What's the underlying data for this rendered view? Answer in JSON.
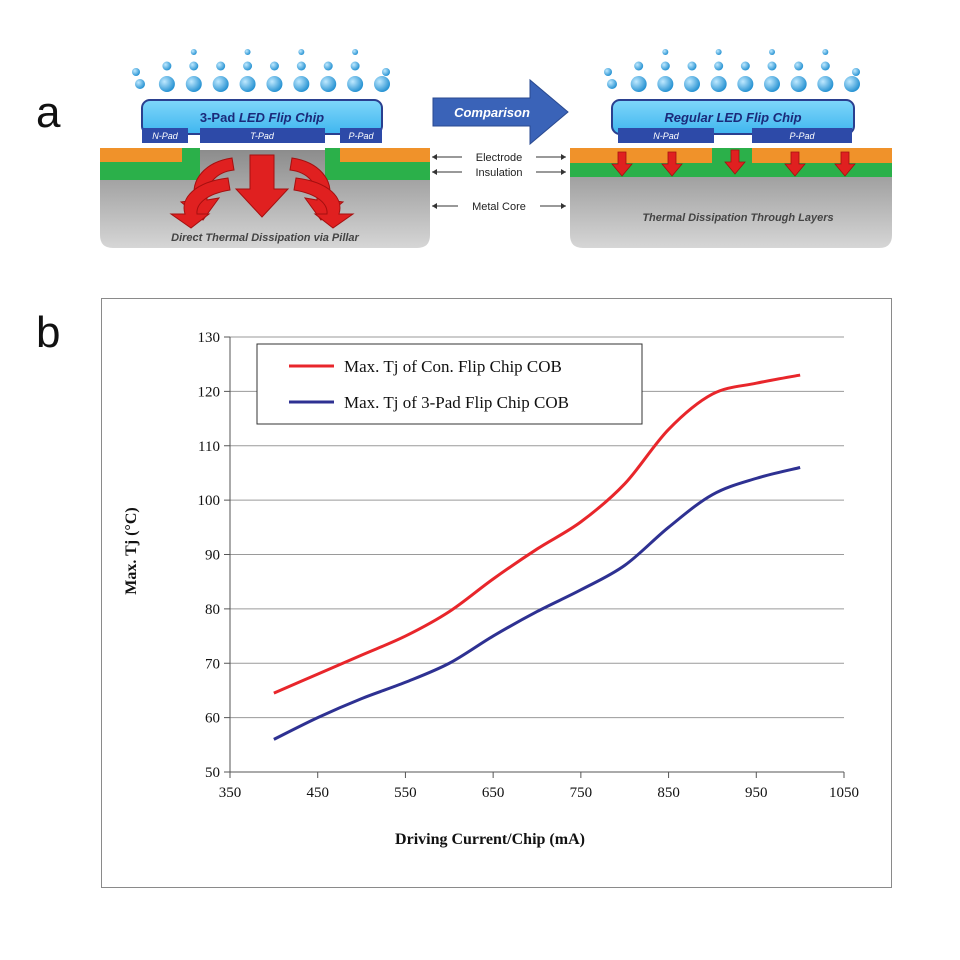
{
  "panels": {
    "a": "a",
    "b": "b"
  },
  "diagram": {
    "left_chip": {
      "title_bold": "3-Pad",
      "title_italic": "LED Flip Chip",
      "pads": [
        "N-Pad",
        "T-Pad",
        "P-Pad"
      ],
      "caption": "Direct Thermal Dissipation via Pillar"
    },
    "arrow_label": "Comparison",
    "right_chip": {
      "title": "Regular LED Flip Chip",
      "pads": [
        "N-Pad",
        "P-Pad"
      ],
      "caption": "Thermal Dissipation Through Layers"
    },
    "layer_labels": [
      "Electrode",
      "Insulation",
      "Metal Core"
    ],
    "colors": {
      "chip": "#5bc8f5",
      "chip_border": "#2a3f8f",
      "pad": "#2d4aa8",
      "electrode": "#f0922a",
      "insulation": "#2bb04a",
      "core": "#b7b7b7",
      "arrow": "#e02020",
      "droplet": "#2f9fd8",
      "comparison_arrow": "#3a63b8"
    }
  },
  "chart_data": {
    "type": "line",
    "title": "",
    "xlabel": "Driving Current/Chip (mA)",
    "ylabel": "Max. Tj (°C)",
    "xlim": [
      350,
      1050
    ],
    "ylim": [
      50,
      130
    ],
    "xticks": [
      350,
      450,
      550,
      650,
      750,
      850,
      950,
      1050
    ],
    "yticks": [
      50,
      60,
      70,
      80,
      90,
      100,
      110,
      120,
      130
    ],
    "grid": "horizontal",
    "legend_position": "top-left",
    "series": [
      {
        "name": "Max. Tj of Con. Flip Chip COB",
        "color": "#e8262b",
        "x": [
          400,
          450,
          500,
          550,
          600,
          650,
          700,
          750,
          800,
          850,
          900,
          950,
          1000
        ],
        "y": [
          64.5,
          68,
          71.5,
          75,
          79.5,
          85.5,
          91,
          96,
          103,
          113,
          119.5,
          121.5,
          123
        ]
      },
      {
        "name": "Max. Tj of 3-Pad Flip Chip COB",
        "color": "#2e3192",
        "x": [
          400,
          450,
          500,
          550,
          600,
          650,
          700,
          750,
          800,
          850,
          900,
          950,
          1000
        ],
        "y": [
          56,
          60,
          63.5,
          66.5,
          70,
          75,
          79.5,
          83.5,
          88,
          95,
          101,
          104,
          106
        ]
      }
    ]
  }
}
